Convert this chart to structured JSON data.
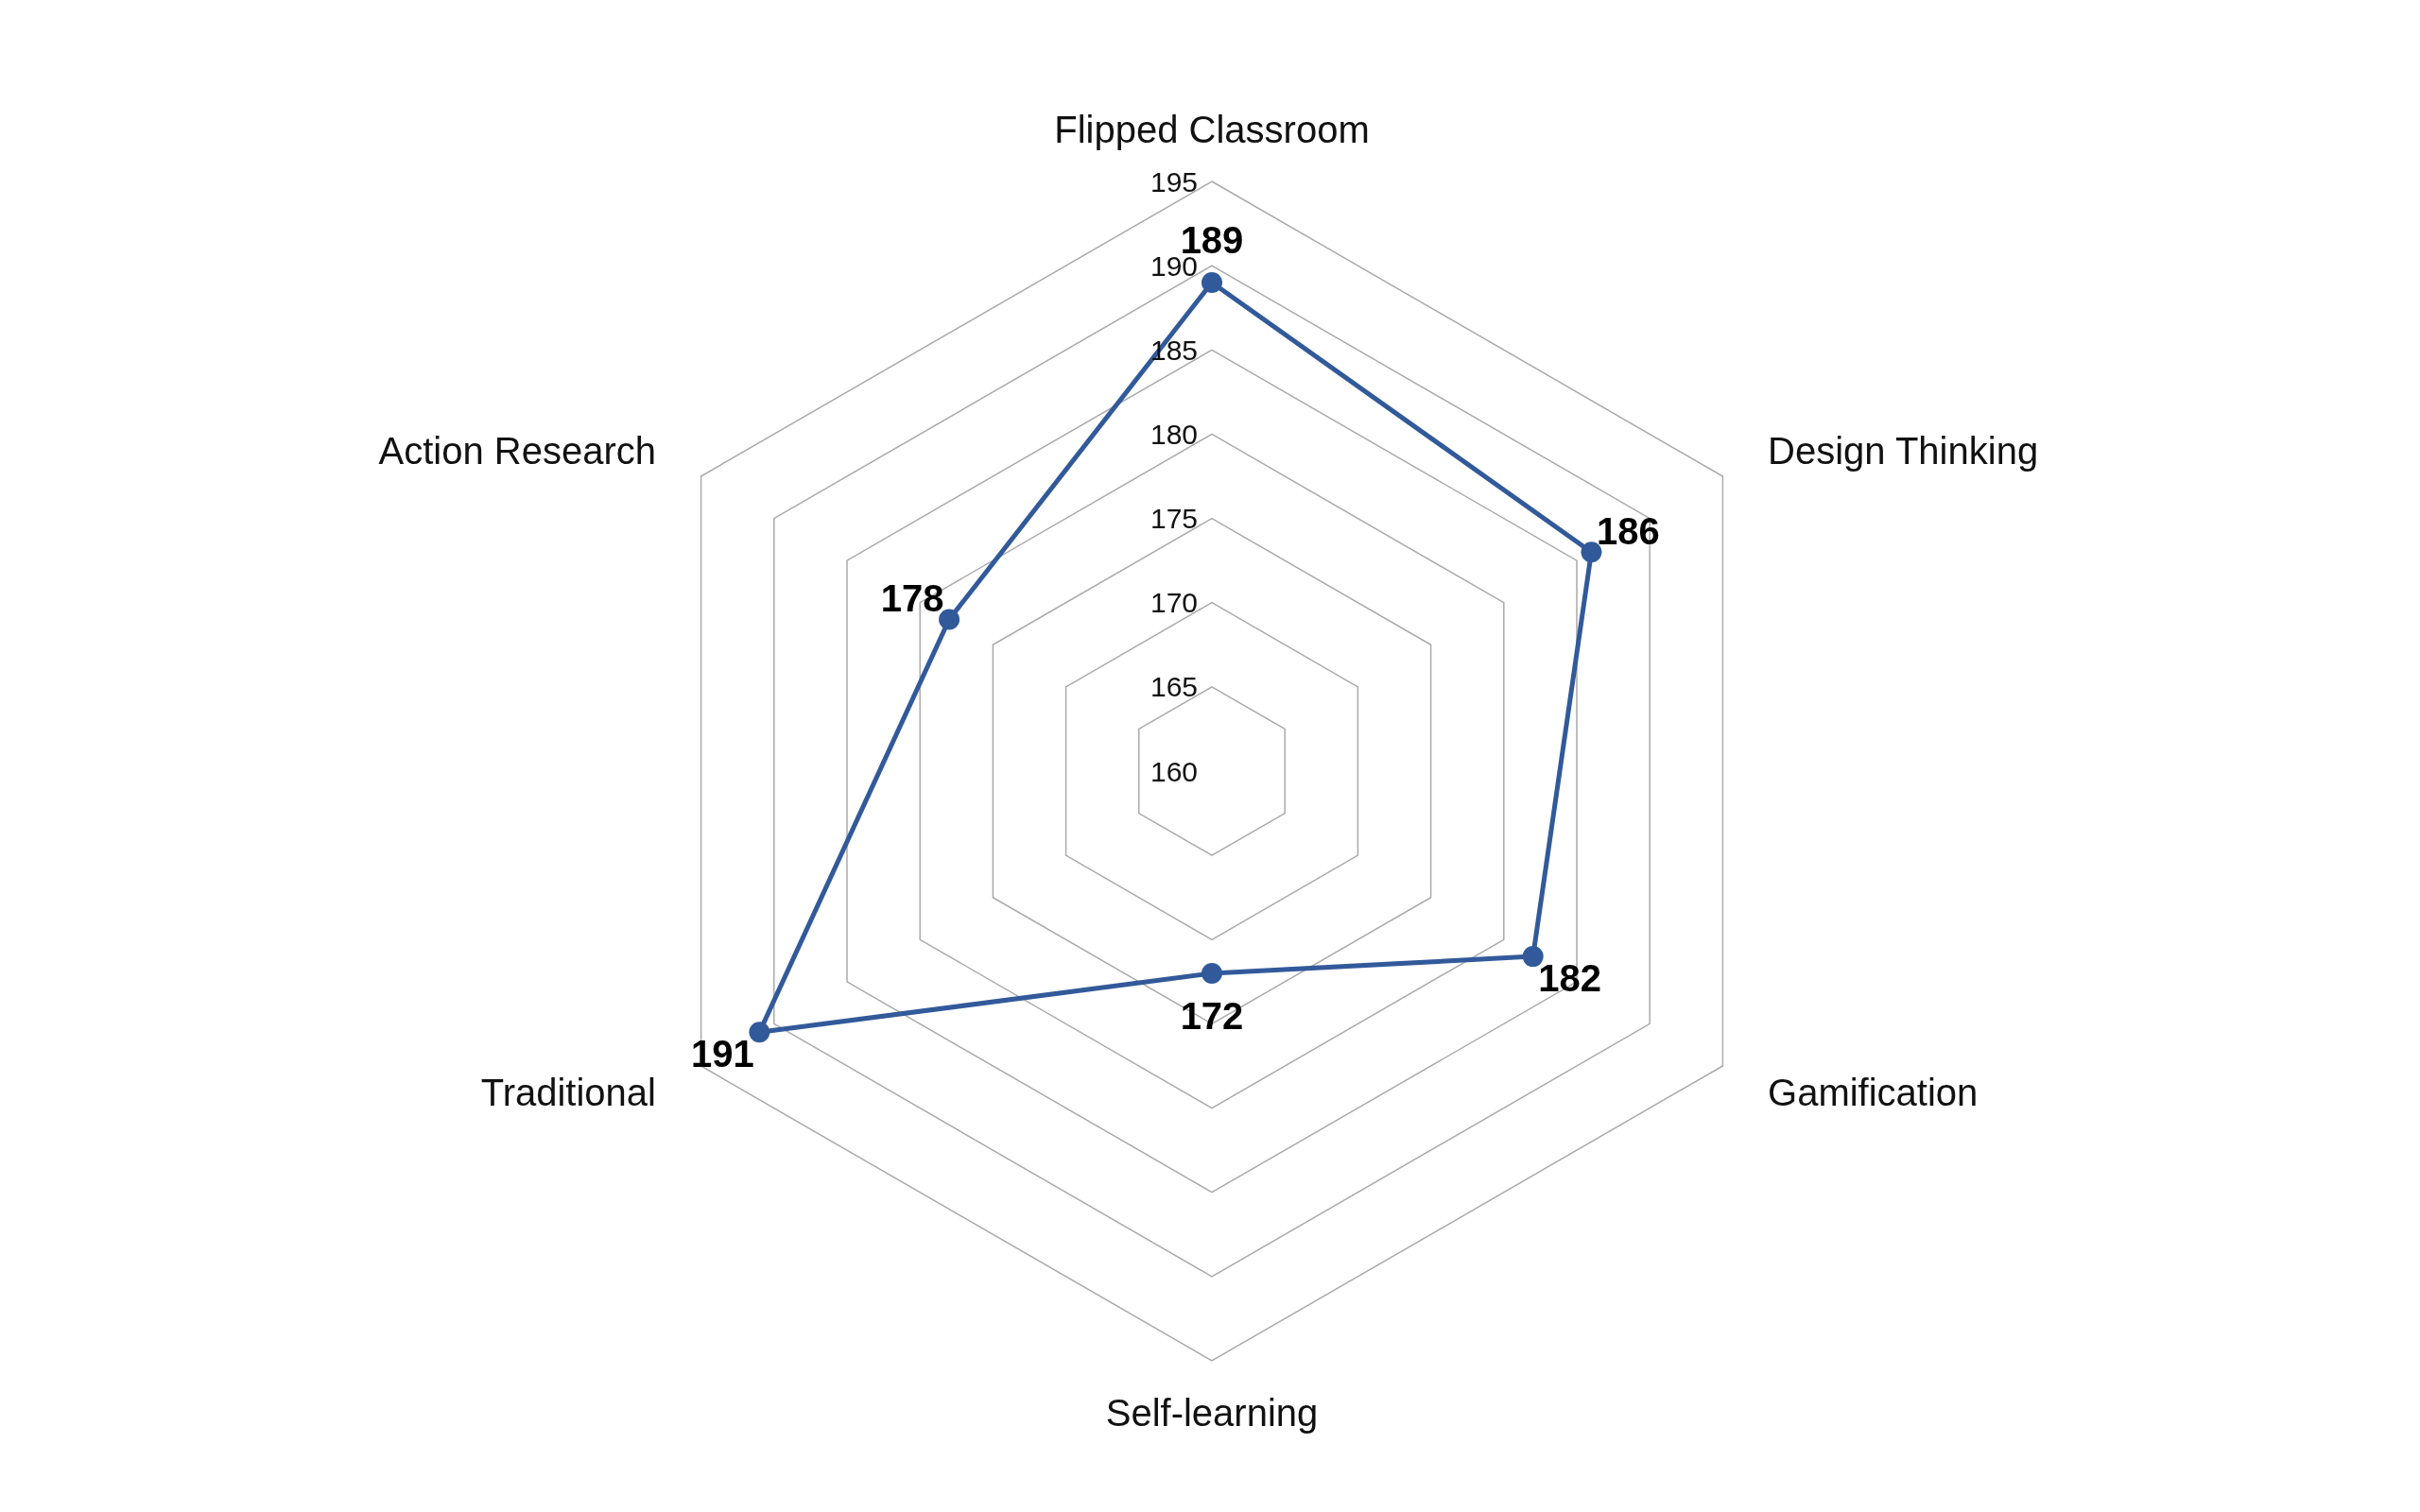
{
  "chart_data": {
    "type": "radar",
    "categories": [
      "Flipped Classroom",
      "Design Thinking",
      "Gamification",
      "Self-learning",
      "Traditional",
      "Action Research"
    ],
    "series": [
      {
        "color": "#325a9a",
        "values": [
          189,
          186,
          182,
          172,
          191,
          178
        ]
      }
    ],
    "ylim": [
      160,
      195
    ],
    "yticks": [
      160,
      165,
      170,
      175,
      180,
      185,
      190,
      195
    ],
    "grid": true,
    "marker": "circle",
    "data_labels": true
  }
}
